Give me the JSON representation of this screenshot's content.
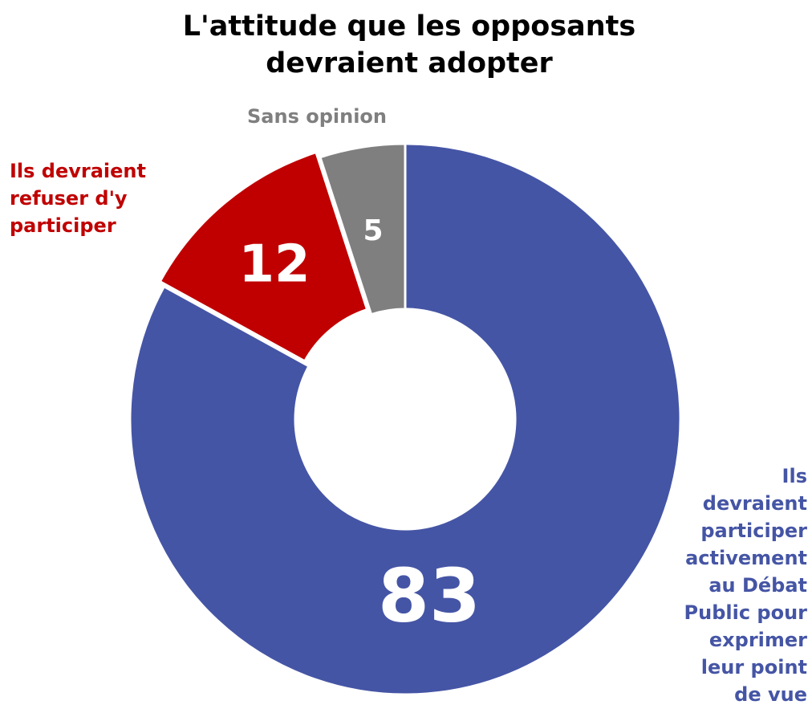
{
  "chart_data": {
    "type": "donut",
    "title": "L'attitude que les opposants devraient adopter",
    "categories": [
      "Ils devraient participer activement au Débat Public pour exprimer leur point de vue",
      "Ils devraient refuser d'y participer",
      "Sans opinion"
    ],
    "values": [
      83,
      12,
      5
    ],
    "colors": [
      "#4555a5",
      "#c00000",
      "#7f7f7f"
    ]
  }
}
